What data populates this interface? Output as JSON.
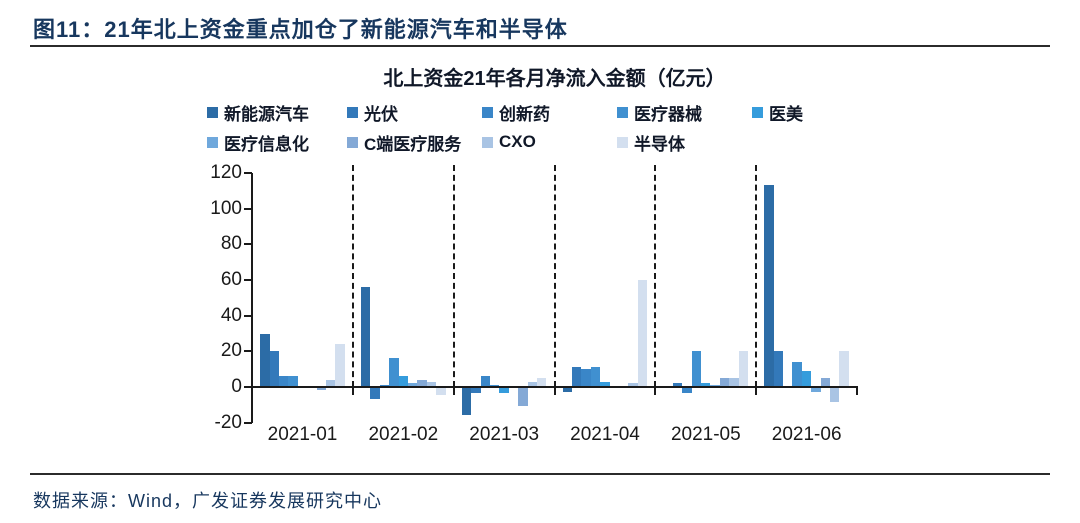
{
  "header": {
    "title": "图11：21年北上资金重点加仓了新能源汽车和半导体"
  },
  "chart_data": {
    "type": "bar",
    "title": "北上资金21年各月净流入金额（亿元）",
    "xlabel": "",
    "ylabel": "",
    "ylim": [
      -20,
      120
    ],
    "yticks": [
      120,
      100,
      80,
      60,
      40,
      20,
      0,
      -20
    ],
    "grid": false,
    "legend_position": "top",
    "month_separator_style": "dashed-vertical-lines",
    "categories": [
      "2021-01",
      "2021-02",
      "2021-03",
      "2021-04",
      "2021-05",
      "2021-06"
    ],
    "series": [
      {
        "name": "新能源汽车",
        "color": "#2C6CA6",
        "values": [
          30,
          56,
          -15,
          -2,
          0,
          113
        ]
      },
      {
        "name": "光伏",
        "color": "#3379BA",
        "values": [
          20,
          -6,
          -3,
          11,
          2,
          20
        ]
      },
      {
        "name": "创新药",
        "color": "#3A86C8",
        "values": [
          6,
          1,
          6,
          10,
          -3,
          0
        ]
      },
      {
        "name": "医疗器械",
        "color": "#4090D0",
        "values": [
          6,
          16,
          1,
          11,
          20,
          14
        ]
      },
      {
        "name": "医美",
        "color": "#359CDC",
        "values": [
          0,
          6,
          -3,
          3,
          2,
          9
        ]
      },
      {
        "name": "医疗信息化",
        "color": "#6FA8DC",
        "values": [
          0,
          2,
          0,
          0,
          1,
          -2
        ]
      },
      {
        "name": "C端医疗服务",
        "color": "#84A9D6",
        "values": [
          -1,
          4,
          -10,
          0,
          5,
          5
        ]
      },
      {
        "name": "CXO",
        "color": "#A9C4E4",
        "values": [
          4,
          3,
          3,
          2,
          5,
          -8
        ]
      },
      {
        "name": "半导体",
        "color": "#D3DFEF",
        "values": [
          24,
          -4,
          5,
          60,
          20,
          20
        ]
      }
    ]
  },
  "footer": {
    "source": "数据来源：Wind，广发证券发展研究中心"
  },
  "colors": {
    "title_text": "#17375E",
    "source_text": "#17375E",
    "axis": "#1A1A1A",
    "rule": "#2B2B2B"
  }
}
